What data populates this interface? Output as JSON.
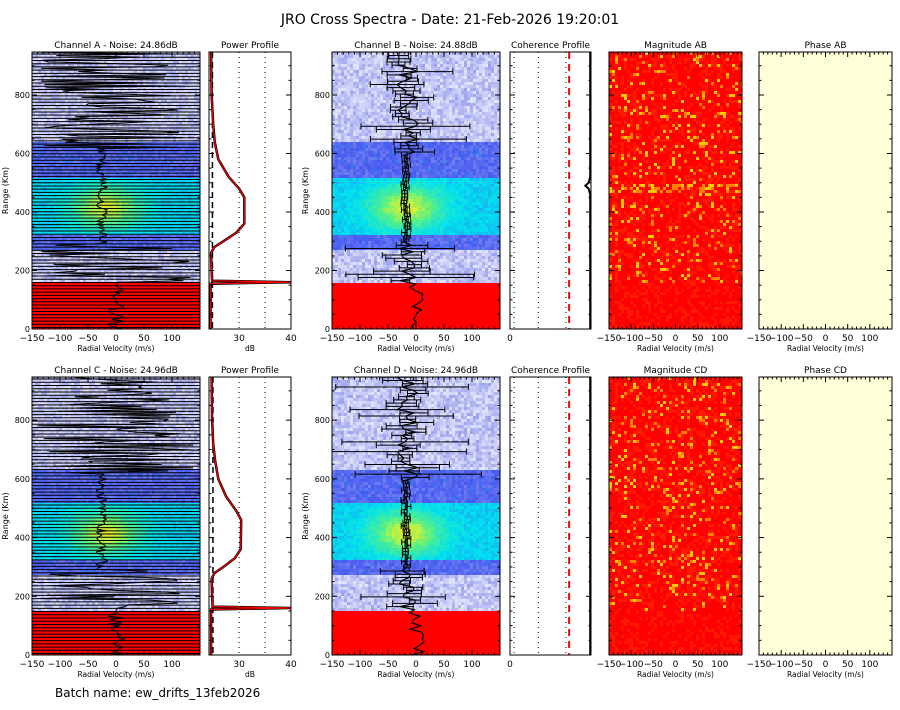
{
  "title": "JRO Cross Spectra - Date: 21-Feb-2026 19:20:01",
  "batch": "Batch name: ew_drifts_13feb2026",
  "colors": {
    "signal_high": "#ff0000",
    "phase_fill": "#ffffd8",
    "threshold": "#ff0000",
    "profile": "#ff0000"
  },
  "chart_data": [
    {
      "id": "specA",
      "type": "heatmap",
      "title": "Channel A - Noise: 24.86dB",
      "noise_db": 24.86,
      "xlabel": "Radial Velocity (m/s)",
      "ylabel": "Range (Km)",
      "xlim": [
        -150,
        150
      ],
      "ylim": [
        0,
        947
      ],
      "xticks": [
        -150,
        -100,
        -50,
        0,
        50,
        100
      ],
      "yticks": [
        0,
        200,
        400,
        600,
        800
      ],
      "overlay": "horizontal-lines"
    },
    {
      "id": "powA",
      "type": "line",
      "title": "Power Profile",
      "xlabel": "dB",
      "xlim": [
        24.2,
        40
      ],
      "xticks": [
        30,
        40
      ],
      "grid_x": [
        30,
        35
      ],
      "noise_db": 24.86,
      "profile": {
        "range": [
          0,
          155,
          160,
          165,
          200,
          260,
          280,
          300,
          330,
          360,
          450,
          480,
          520,
          580,
          640,
          700,
          800,
          947
        ],
        "db": [
          24.5,
          24.5,
          40,
          24.8,
          24.7,
          24.6,
          25.2,
          27,
          29.5,
          31,
          31,
          30,
          28,
          26,
          25.3,
          25,
          24.7,
          24.6
        ]
      }
    },
    {
      "id": "specB",
      "type": "heatmap",
      "title": "Channel B - Noise: 24.88dB",
      "noise_db": 24.88,
      "xlabel": "Radial Velocity (m/s)",
      "ylabel": "Range (Km)",
      "xlim": [
        -150,
        150
      ],
      "ylim": [
        0,
        947
      ],
      "xticks": [
        -150,
        -100,
        -50,
        0,
        50,
        100
      ],
      "yticks": [
        0,
        200,
        400,
        600,
        800
      ],
      "overlay": "error-bars"
    },
    {
      "id": "cohAB",
      "type": "line",
      "title": "Coherence Profile",
      "xlim": [
        0,
        1
      ],
      "xticks": [
        0
      ],
      "grid_x": [
        0.05,
        0.35,
        0.69
      ],
      "threshold": 0.73,
      "profile": {
        "range": [
          0,
          460,
          480,
          490,
          500,
          520,
          947
        ],
        "value": [
          0.99,
          0.99,
          0.97,
          0.93,
          0.97,
          0.99,
          0.99
        ]
      }
    },
    {
      "id": "magAB",
      "type": "heatmap",
      "title": "Magnitude AB",
      "xlabel": "Radial Velocity (m/s)",
      "xlim": [
        -150,
        150
      ],
      "ylim": [
        0,
        947
      ],
      "xticks": [
        -150,
        -100,
        -50,
        0,
        50,
        100
      ]
    },
    {
      "id": "phaAB",
      "type": "heatmap",
      "title": "Phase AB",
      "xlabel": "Radial Velocity (m/s)",
      "xlim": [
        -150,
        150
      ],
      "ylim": [
        0,
        947
      ],
      "xticks": [
        -150,
        -100,
        -50,
        0,
        50,
        100
      ]
    },
    {
      "id": "specC",
      "type": "heatmap",
      "title": "Channel C - Noise: 24.96dB",
      "noise_db": 24.96,
      "xlabel": "Radial Velocity (m/s)",
      "ylabel": "Range (Km)",
      "xlim": [
        -150,
        150
      ],
      "ylim": [
        0,
        947
      ],
      "xticks": [
        -150,
        -100,
        -50,
        0,
        50,
        100
      ],
      "yticks": [
        0,
        200,
        400,
        600,
        800
      ],
      "overlay": "horizontal-lines"
    },
    {
      "id": "powC",
      "type": "line",
      "title": "Power Profile",
      "xlabel": "dB",
      "xlim": [
        24.2,
        40
      ],
      "xticks": [
        30,
        40
      ],
      "grid_x": [
        30,
        35
      ],
      "noise_db": 24.96,
      "profile": {
        "range": [
          0,
          155,
          160,
          165,
          200,
          260,
          280,
          300,
          330,
          360,
          460,
          490,
          540,
          600,
          660,
          720,
          800,
          947
        ],
        "db": [
          24.6,
          24.6,
          40,
          24.9,
          24.8,
          24.7,
          25.3,
          27,
          29.2,
          30.3,
          30.4,
          29.5,
          27.5,
          26,
          25.4,
          25,
          24.8,
          24.7
        ]
      }
    },
    {
      "id": "specD",
      "type": "heatmap",
      "title": "Channel D - Noise: 24.96dB",
      "noise_db": 24.96,
      "xlabel": "Radial Velocity (m/s)",
      "ylabel": "Range (Km)",
      "xlim": [
        -150,
        150
      ],
      "ylim": [
        0,
        947
      ],
      "xticks": [
        -150,
        -100,
        -50,
        0,
        50,
        100
      ],
      "yticks": [
        0,
        200,
        400,
        600,
        800
      ],
      "overlay": "error-bars"
    },
    {
      "id": "cohCD",
      "type": "line",
      "title": "Coherence Profile",
      "xlim": [
        0,
        1
      ],
      "xticks": [
        0
      ],
      "grid_x": [
        0.05,
        0.35,
        0.69
      ],
      "threshold": 0.73,
      "profile": {
        "range": [
          0,
          947
        ],
        "value": [
          0.99,
          0.99
        ]
      }
    },
    {
      "id": "magCD",
      "type": "heatmap",
      "title": "Magnitude CD",
      "xlabel": "Radial Velocity (m/s)",
      "xlim": [
        -150,
        150
      ],
      "ylim": [
        0,
        947
      ],
      "xticks": [
        -150,
        -100,
        -50,
        0,
        50,
        100
      ]
    },
    {
      "id": "phaCD",
      "type": "heatmap",
      "title": "Phase CD",
      "xlabel": "Radial Velocity (m/s)",
      "xlim": [
        -150,
        150
      ],
      "ylim": [
        0,
        947
      ],
      "xticks": [
        -150,
        -100,
        -50,
        0,
        50,
        100
      ]
    }
  ]
}
